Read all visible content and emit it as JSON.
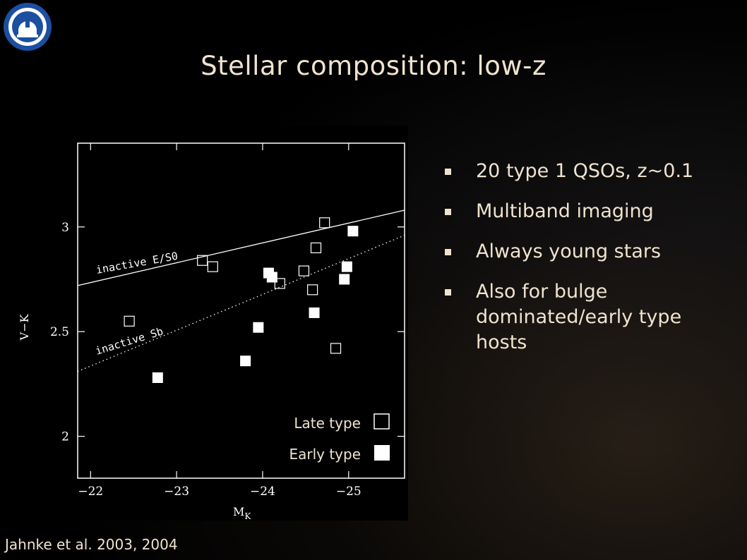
{
  "slide": {
    "title": "Stellar composition: low-z",
    "bullets": [
      "20 type 1 QSOs, z~0.1",
      "Multiband imaging",
      "Always young stars",
      "Also for bulge dominated/early type hosts"
    ],
    "caption": "Jahnke et al. 2003, 2004"
  },
  "colors": {
    "text": "#efe3cf",
    "background": "#000000",
    "plot_line": "#ffffff"
  },
  "chart_data": {
    "type": "scatter",
    "title": "",
    "xlabel": "M_K",
    "ylabel": "V−K",
    "xlim": [
      -21.85,
      -25.65
    ],
    "ylim": [
      1.8,
      3.4
    ],
    "xticks": [
      -22,
      -23,
      -24,
      -25
    ],
    "xtick_labels": [
      "−22",
      "−23",
      "−24",
      "−25"
    ],
    "yticks": [
      2,
      2.5,
      3
    ],
    "ytick_labels": [
      "2",
      "2.5",
      "3"
    ],
    "grid": false,
    "legend_position": "bottom-right",
    "legend": [
      {
        "label": "Late type",
        "marker": "open-square"
      },
      {
        "label": "Early type",
        "marker": "filled-square"
      }
    ],
    "lines": [
      {
        "name": "inactive E/S0",
        "style": "solid",
        "x": [
          -21.85,
          -25.65
        ],
        "y": [
          2.72,
          3.08
        ]
      },
      {
        "name": "inactive Sb",
        "style": "dotted",
        "x": [
          -21.85,
          -25.65
        ],
        "y": [
          2.31,
          2.96
        ]
      }
    ],
    "series": [
      {
        "name": "Late type",
        "x": [
          -22.45,
          -23.3,
          -23.42,
          -24.2,
          -24.48,
          -24.58,
          -24.62,
          -24.72,
          -24.85
        ],
        "y": [
          2.55,
          2.84,
          2.81,
          2.73,
          2.79,
          2.7,
          2.9,
          3.02,
          2.42
        ]
      },
      {
        "name": "Early type",
        "x": [
          -22.78,
          -23.8,
          -23.95,
          -24.07,
          -24.11,
          -24.6,
          -24.95,
          -24.98,
          -25.05
        ],
        "y": [
          2.28,
          2.36,
          2.52,
          2.78,
          2.76,
          2.59,
          2.75,
          2.81,
          2.98
        ]
      }
    ]
  }
}
